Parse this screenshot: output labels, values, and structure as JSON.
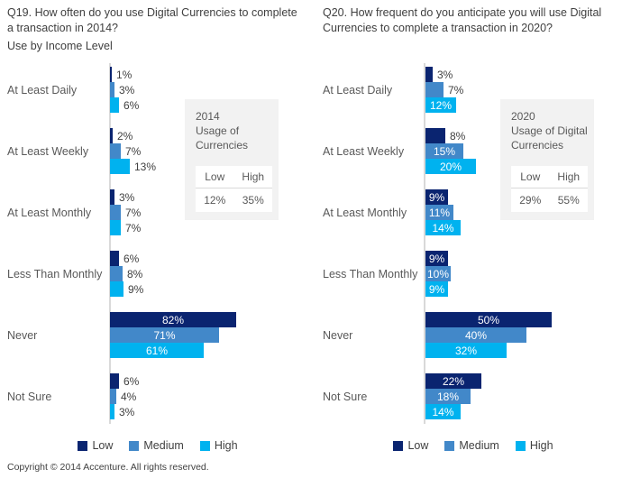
{
  "page": {
    "copyright": "Copyright © 2014 Accenture. All rights reserved."
  },
  "colors": {
    "low": "#0a2470",
    "medium": "#4288c9",
    "high": "#00b2ef",
    "axis_line": "#d9d9d9",
    "annotation_bg": "#f2f2f2"
  },
  "legend": {
    "items": [
      {
        "label": "Low",
        "color": "#0a2470"
      },
      {
        "label": "Medium",
        "color": "#4288c9"
      },
      {
        "label": "High",
        "color": "#00b2ef"
      }
    ]
  },
  "chart_data": [
    {
      "type": "bar",
      "orientation": "horizontal",
      "title": "Q19. How often do you use Digital Currencies to complete a transaction in 2014?",
      "subtitle": "Use by Income Level",
      "categories": [
        "At Least Daily",
        "At Least Weekly",
        "At Least Monthly",
        "Less Than Monthly",
        "Never",
        "Not Sure"
      ],
      "series": [
        {
          "name": "Low",
          "color": "#0a2470",
          "values": [
            1,
            2,
            3,
            6,
            82,
            6
          ]
        },
        {
          "name": "Medium",
          "color": "#4288c9",
          "values": [
            3,
            7,
            7,
            8,
            71,
            4
          ]
        },
        {
          "name": "High",
          "color": "#00b2ef",
          "values": [
            6,
            13,
            7,
            9,
            61,
            3
          ]
        }
      ],
      "value_suffix": "%",
      "xlim": [
        0,
        82
      ],
      "grid": false,
      "legend_position": "bottom",
      "annotation_box": {
        "title_lines": [
          "2014",
          "Usage of",
          "Currencies"
        ],
        "columns": [
          "Low",
          "High"
        ],
        "values": [
          "12%",
          "35%"
        ]
      }
    },
    {
      "type": "bar",
      "orientation": "horizontal",
      "title": "Q20. How frequent do you anticipate you will use Digital Currencies to complete a transaction in 2020?",
      "categories": [
        "At Least Daily",
        "At Least Weekly",
        "At Least Monthly",
        "Less Than Monthly",
        "Never",
        "Not Sure"
      ],
      "series": [
        {
          "name": "Low",
          "color": "#0a2470",
          "values": [
            3,
            8,
            9,
            9,
            50,
            22
          ]
        },
        {
          "name": "Medium",
          "color": "#4288c9",
          "values": [
            7,
            15,
            11,
            10,
            40,
            18
          ]
        },
        {
          "name": "High",
          "color": "#00b2ef",
          "values": [
            12,
            20,
            14,
            9,
            32,
            14
          ]
        }
      ],
      "value_suffix": "%",
      "xlim": [
        0,
        50
      ],
      "grid": false,
      "legend_position": "bottom",
      "annotation_box": {
        "title_lines": [
          "2020",
          "Usage of Digital",
          "Currencies"
        ],
        "columns": [
          "Low",
          "High"
        ],
        "values": [
          "29%",
          "55%"
        ]
      }
    }
  ]
}
